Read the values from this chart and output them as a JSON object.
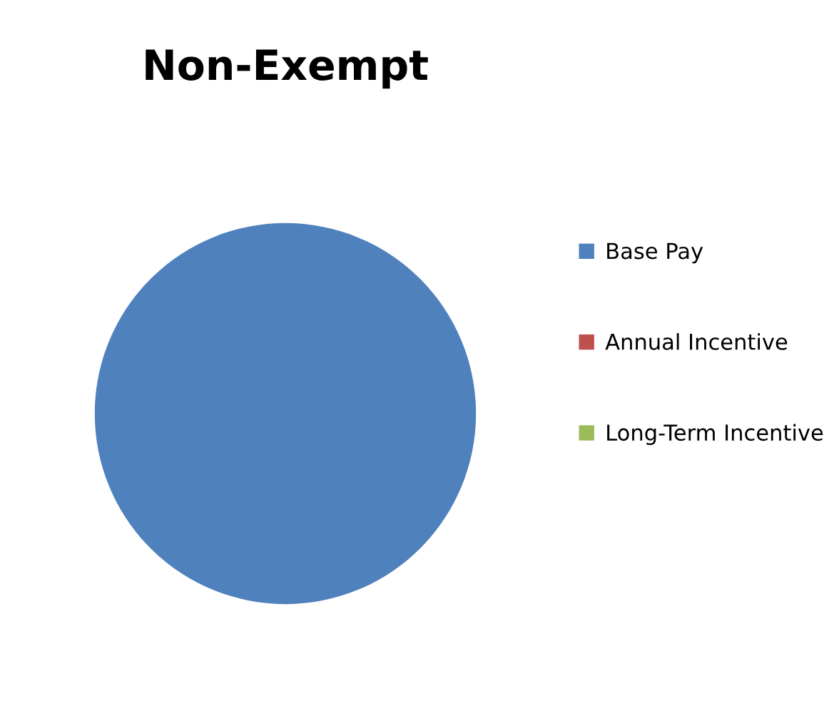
{
  "chart_data": {
    "type": "pie",
    "title": "Non-Exempt",
    "categories": [
      "Base Pay",
      "Annual Incentive",
      "Long-Term Incentive"
    ],
    "values": [
      100,
      0,
      0
    ],
    "colors": [
      "#4f81bd",
      "#c0504d",
      "#9bbb59"
    ],
    "legend": "right"
  }
}
